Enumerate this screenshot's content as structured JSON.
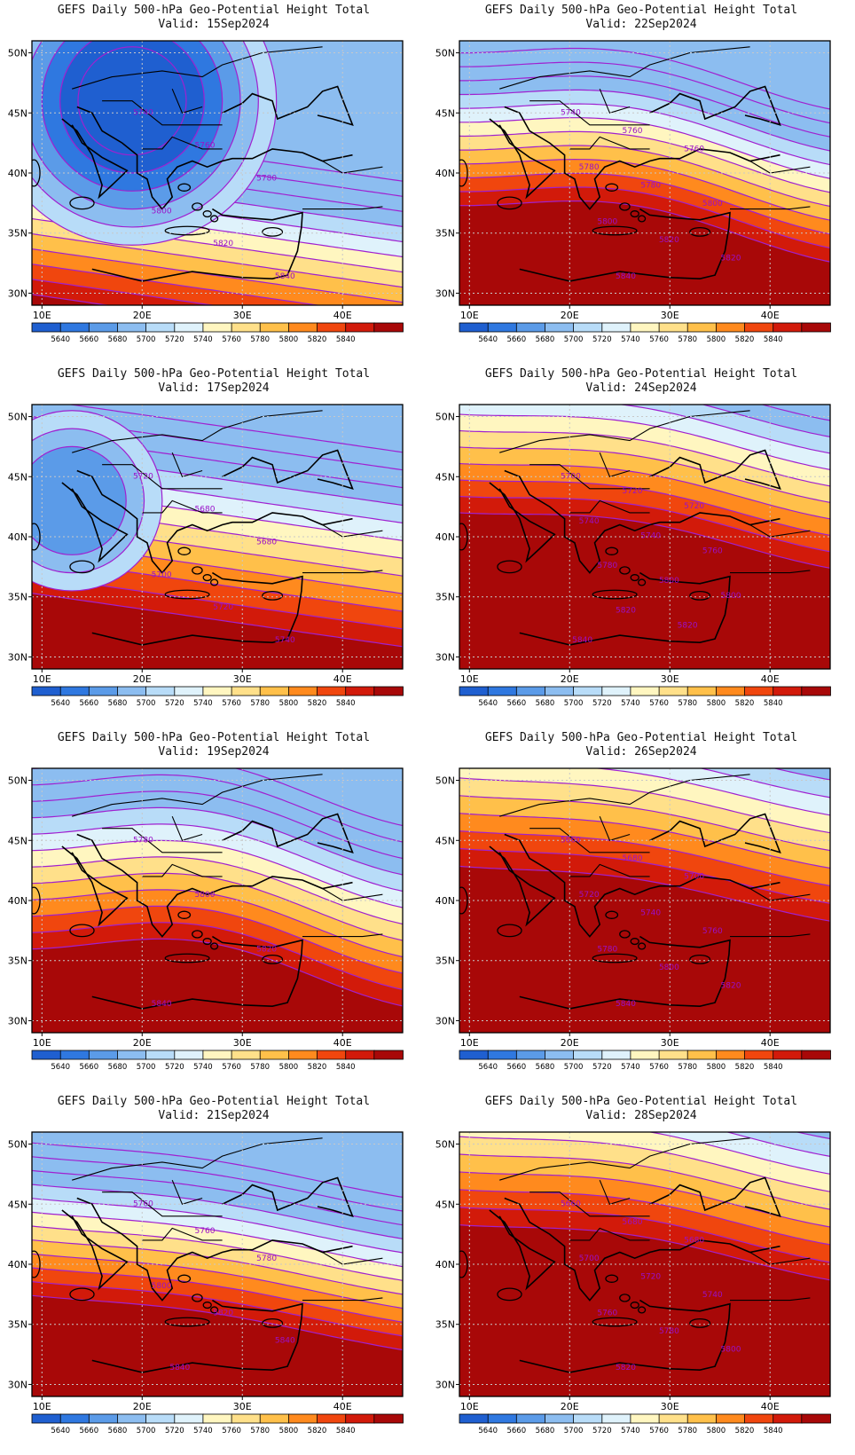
{
  "figure": {
    "title_line1": "GEFS Daily 500-hPa Geo-Potential Height Total",
    "valid_prefix": "Valid:"
  },
  "axes": {
    "lon_ticks": [
      10,
      20,
      30,
      40
    ],
    "lon_labels": [
      "10E",
      "20E",
      "30E",
      "40E"
    ],
    "lat_ticks": [
      30,
      35,
      40,
      45,
      50
    ],
    "lat_labels": [
      "30N",
      "35N",
      "40N",
      "45N",
      "50N"
    ],
    "lon_range": [
      9,
      46
    ],
    "lat_range": [
      29,
      51
    ]
  },
  "colorbar": {
    "labels": [
      "5640",
      "5660",
      "5680",
      "5700",
      "5720",
      "5740",
      "5760",
      "5780",
      "5800",
      "5820",
      "5840"
    ],
    "colors": [
      "#1f5fd0",
      "#2f78e0",
      "#5b9be8",
      "#8cbdf0",
      "#b8dcf8",
      "#dff2fb",
      "#fff6c0",
      "#ffe08a",
      "#ffc04a",
      "#ff8a1e",
      "#f0460e",
      "#d21a0a",
      "#a80808"
    ]
  },
  "contour_line_color": "#a020d0",
  "panels": [
    {
      "valid": "15Sep2024",
      "labels": [
        "5740",
        "5760",
        "5780",
        "5800",
        "5820",
        "5840"
      ]
    },
    {
      "valid": "22Sep2024",
      "labels": [
        "5740",
        "5760",
        "5760",
        "5780",
        "5780",
        "5800",
        "5800",
        "5820",
        "5820",
        "5840"
      ]
    },
    {
      "valid": "17Sep2024",
      "labels": [
        "5720",
        "5680",
        "5680",
        "5700",
        "5720",
        "5740"
      ]
    },
    {
      "valid": "24Sep2024",
      "labels": [
        "5700",
        "5720",
        "5720",
        "5740",
        "5740",
        "5760",
        "5780",
        "5800",
        "5800",
        "5820",
        "5820",
        "5840"
      ]
    },
    {
      "valid": "19Sep2024",
      "labels": [
        "5780",
        "5800",
        "5820",
        "5840"
      ]
    },
    {
      "valid": "26Sep2024",
      "labels": [
        "5660",
        "5680",
        "5700",
        "5720",
        "5740",
        "5760",
        "5780",
        "5800",
        "5820",
        "5840"
      ]
    },
    {
      "valid": "21Sep2024",
      "labels": [
        "5760",
        "5760",
        "5780",
        "5800",
        "5820",
        "5840",
        "5840"
      ]
    },
    {
      "valid": "28Sep2024",
      "labels": [
        "5660",
        "5680",
        "5680",
        "5700",
        "5720",
        "5740",
        "5760",
        "5780",
        "5800",
        "5820"
      ]
    }
  ]
}
